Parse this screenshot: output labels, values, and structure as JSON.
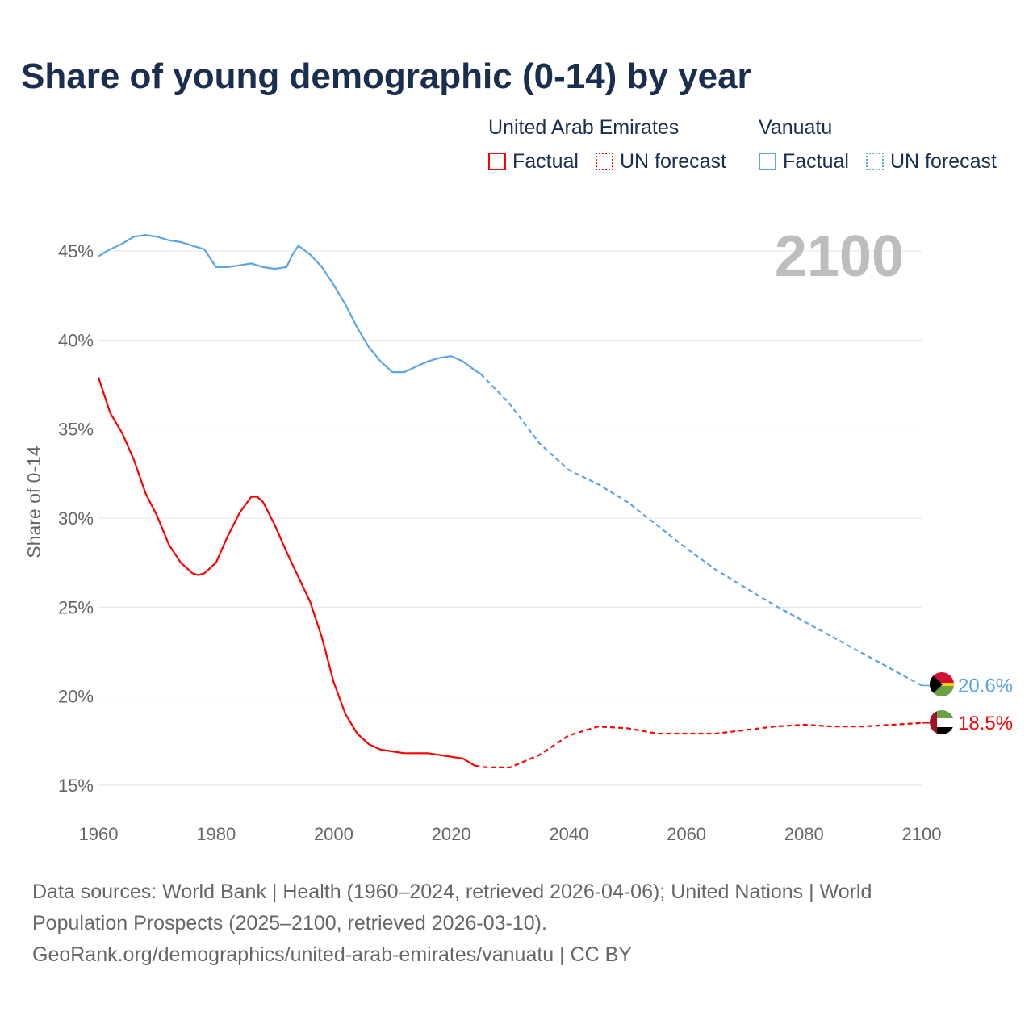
{
  "title": "Share of young demographic (0-14) by year",
  "legend": {
    "groups": [
      {
        "country": "United Arab Emirates",
        "factual": "Factual",
        "forecast": "UN forecast",
        "color": "#ff0000"
      },
      {
        "country": "Vanuatu",
        "factual": "Factual",
        "forecast": "UN forecast",
        "color": "#5aa5e8"
      }
    ]
  },
  "footer": {
    "line1": "Data sources: World Bank | Health (1960–2024, retrieved 2026-04-06); United Nations | World",
    "line2": "Population Prospects (2025–2100, retrieved 2026-03-10).",
    "line3": "GeoRank.org/demographics/united-arab-emirates/vanuatu | CC BY"
  },
  "chart_data": {
    "type": "line",
    "title": "Share of young demographic (0-14) by year",
    "xlabel": "",
    "ylabel": "Share of 0-14",
    "xlim": [
      1960,
      2100
    ],
    "ylim": [
      15,
      45
    ],
    "xticks": [
      "1960",
      "1980",
      "2000",
      "2020",
      "2040",
      "2060",
      "2080",
      "2100"
    ],
    "yticks": [
      "15%",
      "20%",
      "25%",
      "30%",
      "35%",
      "40%",
      "45%"
    ],
    "grid": true,
    "year_label": "2100",
    "series": [
      {
        "name": "Vanuatu",
        "color": "#5aa5e8",
        "end_label": "20.6%",
        "factual": [
          [
            1960,
            44.7
          ],
          [
            1962,
            45.1
          ],
          [
            1964,
            45.4
          ],
          [
            1966,
            45.8
          ],
          [
            1968,
            45.9
          ],
          [
            1970,
            45.8
          ],
          [
            1972,
            45.6
          ],
          [
            1974,
            45.5
          ],
          [
            1976,
            45.3
          ],
          [
            1978,
            45.1
          ],
          [
            1980,
            44.1
          ],
          [
            1982,
            44.1
          ],
          [
            1984,
            44.2
          ],
          [
            1986,
            44.3
          ],
          [
            1988,
            44.1
          ],
          [
            1990,
            44.0
          ],
          [
            1992,
            44.1
          ],
          [
            1993,
            44.8
          ],
          [
            1994,
            45.3
          ],
          [
            1996,
            44.8
          ],
          [
            1998,
            44.1
          ],
          [
            2000,
            43.1
          ],
          [
            2002,
            42.0
          ],
          [
            2004,
            40.7
          ],
          [
            2006,
            39.6
          ],
          [
            2008,
            38.8
          ],
          [
            2010,
            38.2
          ],
          [
            2012,
            38.2
          ],
          [
            2014,
            38.5
          ],
          [
            2016,
            38.8
          ],
          [
            2018,
            39.0
          ],
          [
            2020,
            39.1
          ],
          [
            2022,
            38.8
          ],
          [
            2024,
            38.3
          ],
          [
            2025,
            38.1
          ]
        ],
        "forecast": [
          [
            2025,
            38.1
          ],
          [
            2030,
            36.4
          ],
          [
            2035,
            34.2
          ],
          [
            2040,
            32.7
          ],
          [
            2045,
            31.9
          ],
          [
            2050,
            30.9
          ],
          [
            2055,
            29.6
          ],
          [
            2060,
            28.3
          ],
          [
            2065,
            27.1
          ],
          [
            2070,
            26.1
          ],
          [
            2075,
            25.1
          ],
          [
            2080,
            24.2
          ],
          [
            2085,
            23.3
          ],
          [
            2090,
            22.4
          ],
          [
            2095,
            21.5
          ],
          [
            2100,
            20.6
          ]
        ]
      },
      {
        "name": "United Arab Emirates",
        "color": "#ff0000",
        "end_label": "18.5%",
        "factual": [
          [
            1960,
            37.9
          ],
          [
            1962,
            35.9
          ],
          [
            1964,
            34.8
          ],
          [
            1966,
            33.3
          ],
          [
            1968,
            31.4
          ],
          [
            1970,
            30.1
          ],
          [
            1972,
            28.5
          ],
          [
            1974,
            27.5
          ],
          [
            1976,
            26.9
          ],
          [
            1977,
            26.8
          ],
          [
            1978,
            26.9
          ],
          [
            1980,
            27.5
          ],
          [
            1982,
            29.0
          ],
          [
            1984,
            30.3
          ],
          [
            1986,
            31.2
          ],
          [
            1987,
            31.2
          ],
          [
            1988,
            30.9
          ],
          [
            1990,
            29.6
          ],
          [
            1992,
            28.1
          ],
          [
            1994,
            26.7
          ],
          [
            1996,
            25.3
          ],
          [
            1998,
            23.3
          ],
          [
            2000,
            20.8
          ],
          [
            2002,
            19.0
          ],
          [
            2004,
            17.9
          ],
          [
            2006,
            17.3
          ],
          [
            2008,
            17.0
          ],
          [
            2010,
            16.9
          ],
          [
            2012,
            16.8
          ],
          [
            2016,
            16.8
          ],
          [
            2018,
            16.7
          ],
          [
            2020,
            16.6
          ],
          [
            2022,
            16.5
          ],
          [
            2024,
            16.1
          ]
        ],
        "forecast": [
          [
            2024,
            16.1
          ],
          [
            2026,
            16.0
          ],
          [
            2030,
            16.0
          ],
          [
            2035,
            16.7
          ],
          [
            2040,
            17.8
          ],
          [
            2045,
            18.3
          ],
          [
            2050,
            18.2
          ],
          [
            2055,
            17.9
          ],
          [
            2060,
            17.9
          ],
          [
            2065,
            17.9
          ],
          [
            2070,
            18.1
          ],
          [
            2075,
            18.3
          ],
          [
            2080,
            18.4
          ],
          [
            2085,
            18.3
          ],
          [
            2090,
            18.3
          ],
          [
            2095,
            18.4
          ],
          [
            2100,
            18.5
          ]
        ]
      }
    ]
  }
}
